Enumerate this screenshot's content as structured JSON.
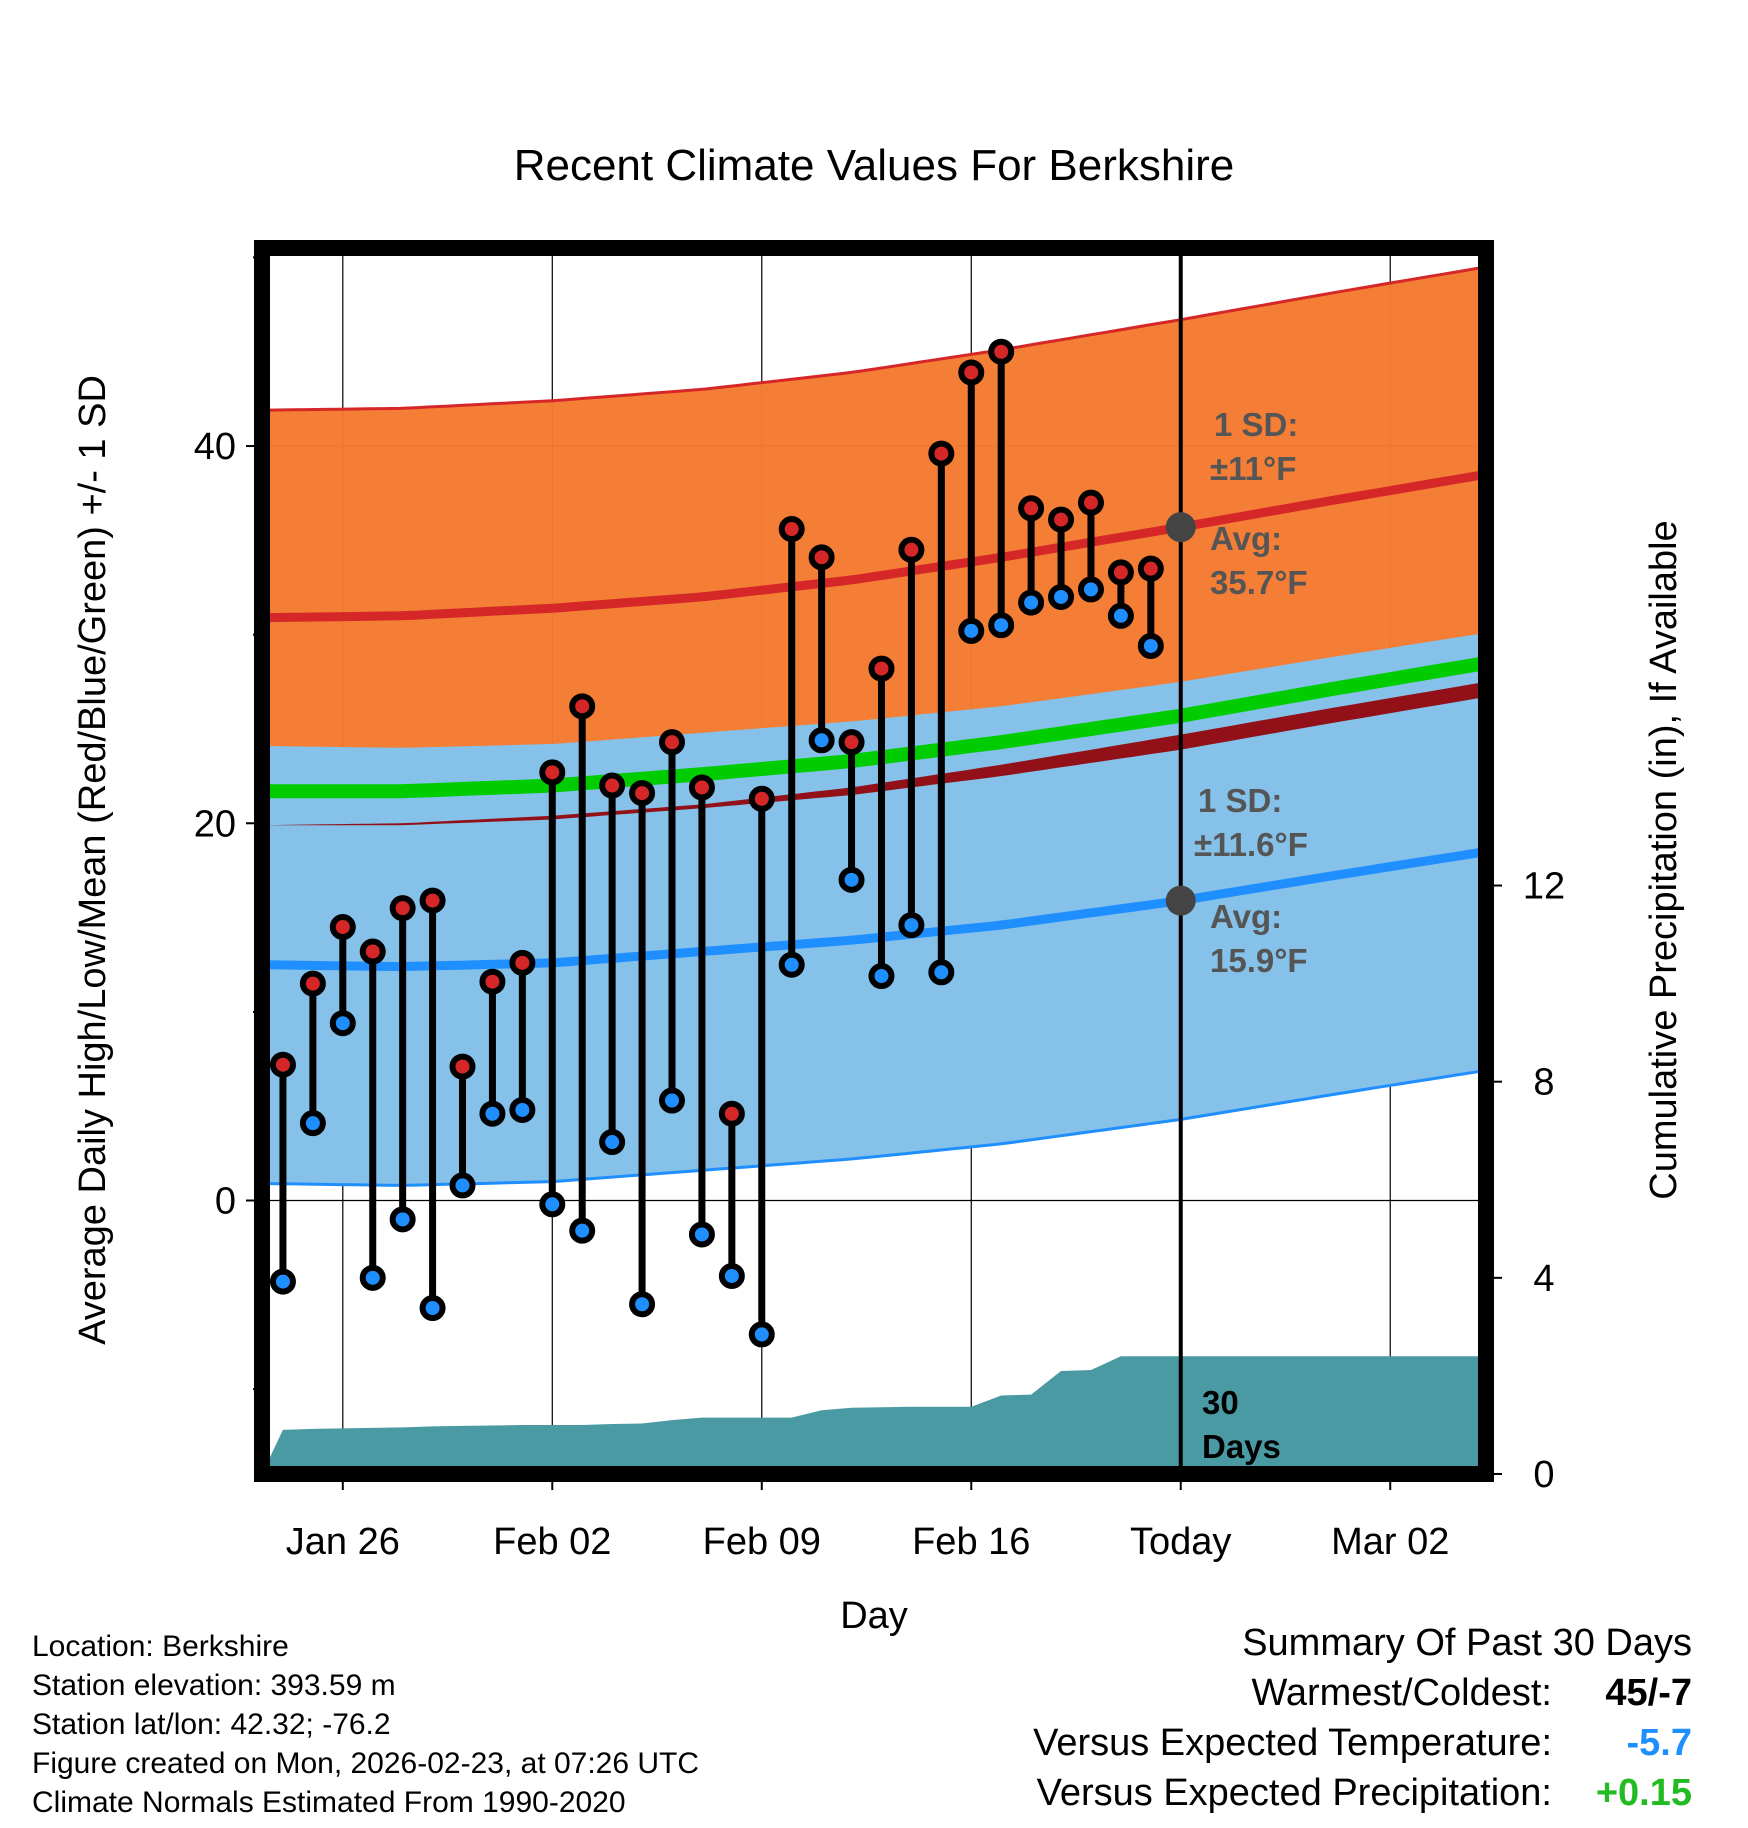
{
  "chart_data": {
    "type": "range",
    "title": "Recent Climate Values For Berkshire",
    "xlabel": "Day",
    "ylabel_left": "Average Daily High/Low/Mean (Red/Blue/Green) +/- 1 SD",
    "ylabel_right": "Cumulative Precipitation (in), If Available",
    "x_tick_labels": [
      "Jan 26",
      "Feb 02",
      "Feb 09",
      "Feb 16",
      "Today",
      "Mar 02"
    ],
    "x_tick_day_index": [
      3,
      10,
      17,
      24,
      31,
      38
    ],
    "x_range_day_index": [
      0.3,
      41.2
    ],
    "y_ticks_left": [
      "0",
      "20",
      "40"
    ],
    "y_ticks_left_values": [
      0,
      20,
      40
    ],
    "y_range_left": [
      -14.5,
      50.5
    ],
    "y_ticks_right": [
      "0",
      "4",
      "8",
      "12"
    ],
    "y_ticks_right_values": [
      0,
      4,
      8,
      12
    ],
    "y_range_right": [
      0,
      25
    ],
    "today_index": 31,
    "normals": {
      "x": [
        0.3,
        5,
        10,
        15,
        20,
        25,
        31,
        36,
        41.2
      ],
      "high_mean": [
        30.9,
        31.0,
        31.4,
        32.0,
        32.9,
        34.1,
        35.7,
        37.1,
        38.5
      ],
      "high_sd": 11.0,
      "low_mean": [
        12.5,
        12.4,
        12.6,
        13.2,
        13.8,
        14.6,
        15.9,
        17.2,
        18.5
      ],
      "low_sd": 11.6,
      "mean_mean": [
        21.7,
        21.7,
        22.0,
        22.6,
        23.3,
        24.3,
        25.7,
        27.1,
        28.5
      ]
    },
    "series": [
      {
        "name": "High",
        "color": "#d62728",
        "values": [
          7.2,
          11.5,
          14.5,
          13.2,
          15.5,
          15.9,
          7.1,
          11.6,
          12.6,
          22.7,
          26.2,
          22.0,
          21.6,
          24.3,
          21.9,
          4.6,
          21.3,
          35.6,
          34.1,
          24.3,
          28.2,
          34.5,
          39.6,
          43.9,
          45.0,
          36.7,
          36.1,
          37.0,
          33.3,
          33.5
        ]
      },
      {
        "name": "Low",
        "color": "#1f8fff",
        "values": [
          -4.3,
          4.1,
          9.4,
          -4.1,
          -1.0,
          -5.7,
          0.8,
          4.6,
          4.8,
          -0.2,
          -1.6,
          3.1,
          -5.5,
          5.3,
          -1.8,
          -4.0,
          -7.1,
          12.5,
          24.4,
          17.0,
          11.9,
          14.6,
          12.1,
          30.2,
          30.5,
          31.7,
          32.0,
          32.4,
          31.0,
          29.4
        ]
      }
    ],
    "precip_cumulative": [
      0,
      0.9,
      0.92,
      0.93,
      0.94,
      0.95,
      0.97,
      0.98,
      0.99,
      1.0,
      1.0,
      1.0,
      1.02,
      1.03,
      1.1,
      1.15,
      1.15,
      1.15,
      1.15,
      1.3,
      1.35,
      1.36,
      1.37,
      1.37,
      1.37,
      1.6,
      1.62,
      2.1,
      2.12,
      2.4,
      2.4,
      2.4,
      2.4,
      2.4,
      2.4,
      2.4,
      2.4,
      2.4,
      2.4,
      2.4,
      2.4,
      2.4
    ],
    "annotations": {
      "high_sd_label": "1 SD:",
      "high_sd_value": "±11",
      "high_sd_unit": "°F",
      "high_avg_label": "Avg:",
      "high_avg_value": "35.7",
      "high_avg_unit": "°F",
      "low_sd_label": "1 SD:",
      "low_sd_value": "±11.6",
      "low_sd_unit": "°F",
      "low_avg_label": "Avg:",
      "low_avg_value": "15.9",
      "low_avg_unit": "°F",
      "precip_days_number": "30",
      "precip_days_word": "Days"
    },
    "colors": {
      "high_band": "#f47a2e",
      "high_line": "#d62728",
      "low_band": "#85c1e8",
      "low_line": "#1f8fff",
      "mean_band": "#921017",
      "mean_line": "#00cc00",
      "precip": "#4a9aa4",
      "today_marker": "#444444"
    }
  },
  "info": {
    "location": "Location: Berkshire",
    "elevation": "Station elevation: 393.59 m",
    "latlon": "Station lat/lon: 42.32; -76.2",
    "created": "Figure created on Mon, 2026-02-23, at 07:26 UTC",
    "normals": "Climate Normals Estimated From 1990-2020"
  },
  "summary": {
    "title": "Summary Of Past 30 Days",
    "warmest_label": "Warmest/Coldest:",
    "warmest_value": "45/-7",
    "temp_label": "Versus Expected Temperature:",
    "temp_value": "-5.7",
    "temp_color": "#1f8fff",
    "precip_label": "Versus Expected Precipitation:",
    "precip_value": "+0.15",
    "precip_color": "#22bb22"
  }
}
